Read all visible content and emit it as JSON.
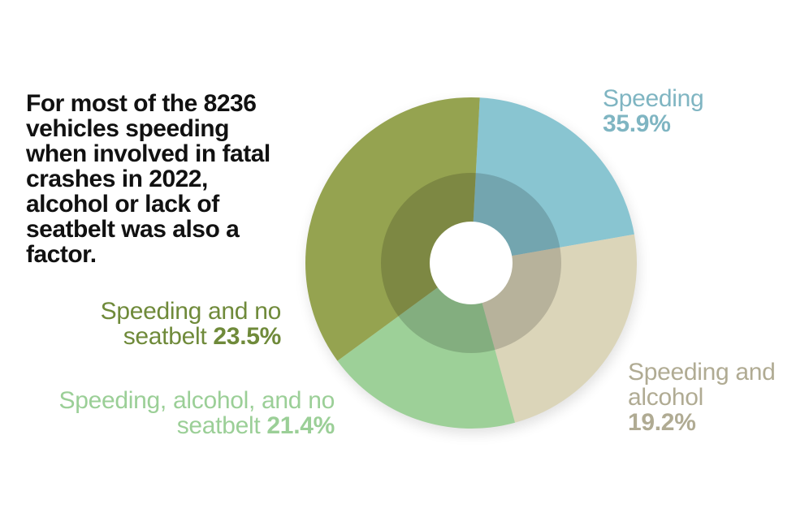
{
  "chart_data": {
    "type": "pie",
    "title": "For most of the 8236 vehicles speeding when involved in fatal crashes in 2022, alcohol or lack of seatbelt was also a factor.",
    "labels": [
      {
        "name": "Speeding",
        "value_text": "35.9%",
        "color": "#7fb5c2"
      },
      {
        "name": "Speeding and alcohol",
        "value_text": "19.2%",
        "color": "#b0ab93"
      },
      {
        "name": "Speeding, alcohol, and no seatbelt",
        "value_text": "21.4%",
        "color": "#9bcf97"
      },
      {
        "name": "Speeding and no seatbelt",
        "value_text": "23.5%",
        "color": "#6f8a3a"
      }
    ],
    "slices": [
      {
        "value": 21.4,
        "color": "#89c5d1"
      },
      {
        "value": 23.5,
        "color": "#dbd5b9"
      },
      {
        "value": 19.2,
        "color": "#9dd098"
      },
      {
        "value": 35.9,
        "color": "#95a350"
      }
    ]
  }
}
